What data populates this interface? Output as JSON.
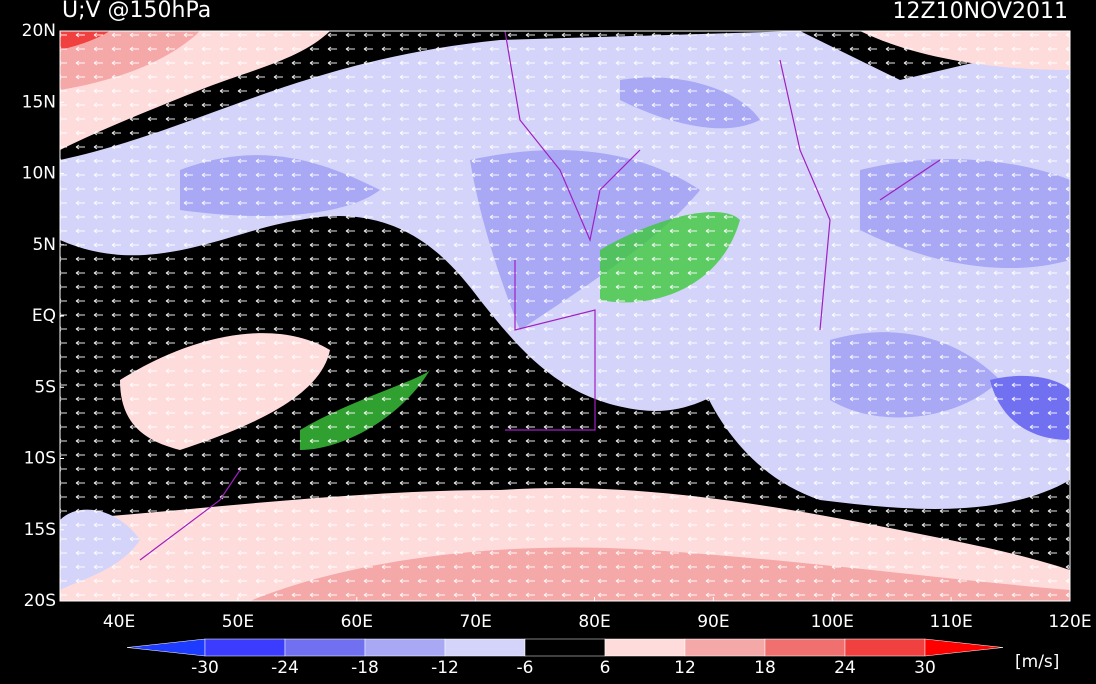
{
  "title": "U;V @150hPa",
  "time": "12Z10NOV2011",
  "lat_labels": [
    "20N",
    "15N",
    "10N",
    "5N",
    "EQ",
    "5S",
    "10S",
    "15S",
    "20S"
  ],
  "lon_labels": [
    "40E",
    "50E",
    "60E",
    "70E",
    "80E",
    "90E",
    "100E",
    "110E",
    "120E"
  ],
  "colorbar": {
    "levels": [
      -30,
      -24,
      -18,
      -12,
      -6,
      6,
      12,
      18,
      24,
      30
    ],
    "colors": [
      "#1e3cff",
      "#3c3cff",
      "#7070f0",
      "#a8a8f5",
      "#d4d4fa",
      "#000000",
      "#ffdcdc",
      "#f5a8a8",
      "#f07070",
      "#f04040",
      "#ff0000"
    ],
    "units": "[m/s]"
  }
}
